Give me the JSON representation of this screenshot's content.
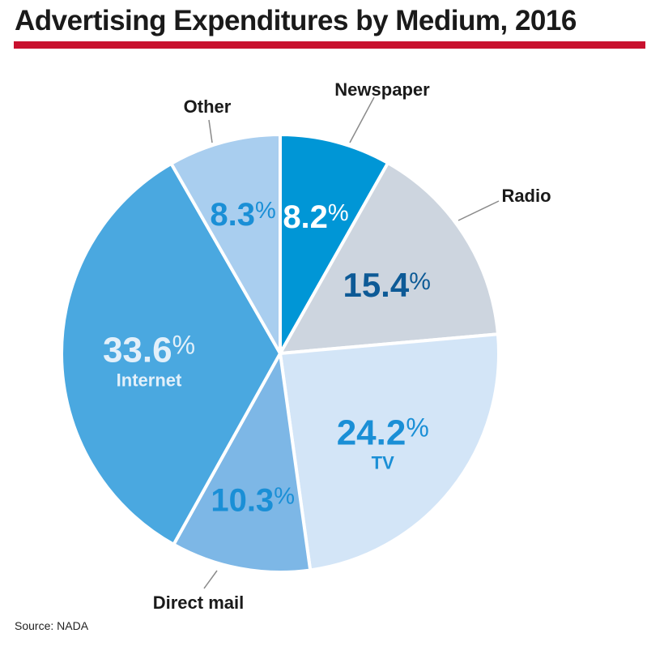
{
  "chart_data": {
    "type": "pie",
    "title": "Advertising Expenditures by Medium, 2016",
    "source": "Source: NADA",
    "slices": [
      {
        "label": "Newspaper",
        "value": 8.2,
        "value_text": "8.2",
        "color": "#0096d6",
        "text_color": "#ffffff",
        "label_inside": false
      },
      {
        "label": "Radio",
        "value": 15.4,
        "value_text": "15.4",
        "color": "#cdd5df",
        "text_color": "#0d5a96",
        "label_inside": false
      },
      {
        "label": "TV",
        "value": 24.2,
        "value_text": "24.2",
        "color": "#d3e5f7",
        "text_color": "#1a8fd6",
        "label_inside": true
      },
      {
        "label": "Direct mail",
        "value": 10.3,
        "value_text": "10.3",
        "color": "#7db7e6",
        "text_color": "#1a8fd6",
        "label_inside": false
      },
      {
        "label": "Internet",
        "value": 33.6,
        "value_text": "33.6",
        "color": "#4aa8e0",
        "text_color": "#e3f0fa",
        "label_inside": true
      },
      {
        "label": "Other",
        "value": 8.3,
        "value_text": "8.3",
        "color": "#a9ceef",
        "text_color": "#1a8fd6",
        "label_inside": false
      }
    ],
    "percent_sign": "%"
  }
}
